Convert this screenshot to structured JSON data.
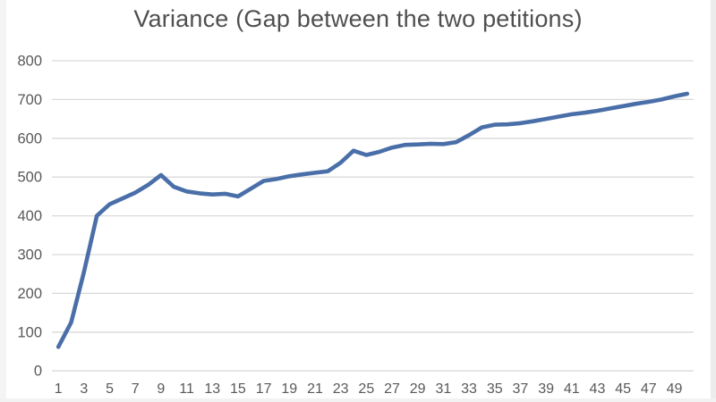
{
  "chart": {
    "title": "Variance (Gap between the two petitions)"
  },
  "chart_data": {
    "type": "line",
    "title": "Variance (Gap between the two petitions)",
    "x": [
      1,
      2,
      3,
      4,
      5,
      6,
      7,
      8,
      9,
      10,
      11,
      12,
      13,
      14,
      15,
      16,
      17,
      18,
      19,
      20,
      21,
      22,
      23,
      24,
      25,
      26,
      27,
      28,
      29,
      30,
      31,
      32,
      33,
      34,
      35,
      36,
      37,
      38,
      39,
      40,
      41,
      42,
      43,
      44,
      45,
      46,
      47,
      48,
      49,
      50
    ],
    "values": [
      62,
      125,
      255,
      400,
      430,
      445,
      460,
      480,
      505,
      475,
      463,
      458,
      455,
      457,
      450,
      470,
      490,
      495,
      502,
      507,
      511,
      515,
      537,
      568,
      557,
      565,
      576,
      583,
      584,
      586,
      585,
      590,
      608,
      628,
      635,
      636,
      639,
      644,
      650,
      656,
      662,
      666,
      671,
      677,
      683,
      689,
      694,
      700,
      708,
      715
    ],
    "x_tick_labels": [
      "1",
      "3",
      "5",
      "7",
      "9",
      "11",
      "13",
      "15",
      "17",
      "19",
      "21",
      "23",
      "25",
      "27",
      "29",
      "31",
      "33",
      "35",
      "37",
      "39",
      "41",
      "43",
      "45",
      "47",
      "49"
    ],
    "y_ticks": [
      0,
      100,
      200,
      300,
      400,
      500,
      600,
      700,
      800
    ],
    "ylim": [
      0,
      800
    ],
    "grid": "horizontal",
    "legend": "none",
    "line_color": "#4a6fa8",
    "grid_color": "#d9d9d9",
    "label_color": "#595959",
    "title_color": "#4f4f4f"
  }
}
